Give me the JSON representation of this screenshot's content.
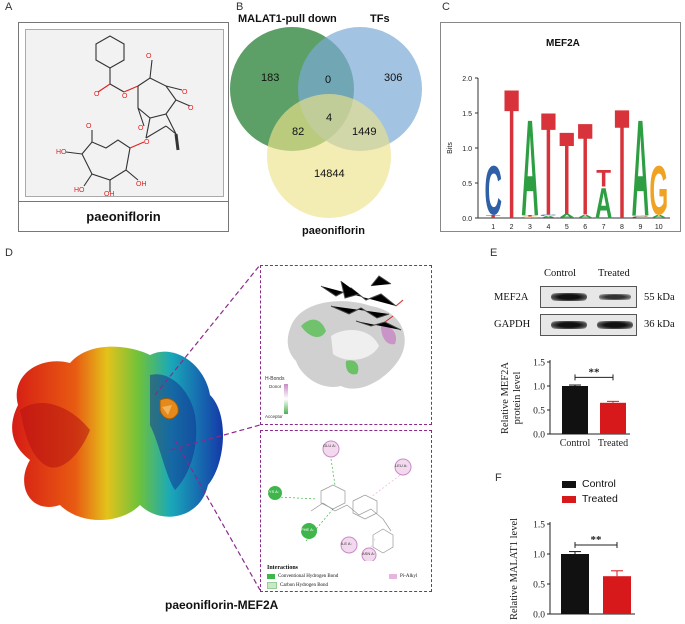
{
  "panels": {
    "A": {
      "label": "A",
      "compound_name": "paeoniflorin"
    },
    "B": {
      "label": "B",
      "sets": [
        {
          "name": "MALAT1-pull down",
          "color": "#3f8f4c"
        },
        {
          "name": "TFs",
          "color": "#7aa9d6"
        },
        {
          "name": "paeoniflorin",
          "color": "#ede28a"
        }
      ],
      "counts": {
        "only_malat1": "183",
        "only_tfs": "306",
        "only_paeoniflorin": "14844",
        "malat1_tfs": "0",
        "malat1_paeoniflorin": "82",
        "tfs_paeoniflorin": "1449",
        "all_three": "4"
      }
    },
    "C": {
      "label": "C",
      "chart_data": {
        "type": "bar",
        "title": "MEF2A",
        "ylabel": "Bits",
        "ylim": [
          0,
          2.0
        ],
        "yticks": [
          "0.0",
          "0.5",
          "1.0",
          "1.5",
          "2.0"
        ],
        "categories": [
          "1",
          "2",
          "3",
          "4",
          "5",
          "6",
          "7",
          "8",
          "9",
          "10"
        ],
        "letters_colors": {
          "C": "#2f5fa7",
          "T": "#d8323a",
          "A": "#2e9e43",
          "G": "#f0a323"
        },
        "positions": [
          {
            "pos": "1",
            "stack": [
              {
                "letter": "T",
                "bits": 0.05
              },
              {
                "letter": "C",
                "bits": 0.72
              }
            ]
          },
          {
            "pos": "2",
            "stack": [
              {
                "letter": "T",
                "bits": 1.92
              }
            ]
          },
          {
            "pos": "3",
            "stack": [
              {
                "letter": "G",
                "bits": 0.02
              },
              {
                "letter": "T",
                "bits": 0.02
              },
              {
                "letter": "A",
                "bits": 1.42
              }
            ]
          },
          {
            "pos": "4",
            "stack": [
              {
                "letter": "A",
                "bits": 0.03
              },
              {
                "letter": "C",
                "bits": 0.02
              },
              {
                "letter": "T",
                "bits": 1.52
              }
            ]
          },
          {
            "pos": "5",
            "stack": [
              {
                "letter": "A",
                "bits": 0.06
              },
              {
                "letter": "T",
                "bits": 1.22
              }
            ]
          },
          {
            "pos": "6",
            "stack": [
              {
                "letter": "A",
                "bits": 0.05
              },
              {
                "letter": "T",
                "bits": 1.36
              }
            ]
          },
          {
            "pos": "7",
            "stack": [
              {
                "letter": "A",
                "bits": 0.45
              },
              {
                "letter": "T",
                "bits": 0.25
              }
            ]
          },
          {
            "pos": "8",
            "stack": [
              {
                "letter": "T",
                "bits": 1.62
              }
            ]
          },
          {
            "pos": "9",
            "stack": [
              {
                "letter": "C",
                "bits": 0.02
              },
              {
                "letter": "G",
                "bits": 0.02
              },
              {
                "letter": "A",
                "bits": 1.42
              }
            ]
          },
          {
            "pos": "10",
            "stack": [
              {
                "letter": "A",
                "bits": 0.05
              },
              {
                "letter": "G",
                "bits": 0.72
              }
            ]
          }
        ]
      }
    },
    "D": {
      "label": "D",
      "caption": "paeoniflorin-MEF2A",
      "surface_legend": {
        "title": "H-Bonds",
        "top": "Donor",
        "bottom": "Acceptor"
      },
      "residue_labels": [
        "GLU A:",
        "LYS A:",
        "LEU A:",
        "PHE A:",
        "ILE A:",
        "ASN A:"
      ],
      "interactions": {
        "title": "Interactions",
        "items": [
          {
            "label": "Conventional Hydrogen Bond",
            "color": "#3fb64b"
          },
          {
            "label": "Carbon Hydrogen Bond",
            "color": "#c9e9c6"
          },
          {
            "label": "Pi-Alkyl",
            "color": "#e7b5dd"
          }
        ]
      }
    },
    "E": {
      "label": "E",
      "blot": {
        "columns": [
          "Control",
          "Treated"
        ],
        "rows": [
          {
            "protein": "MEF2A",
            "kda": "55 kDa"
          },
          {
            "protein": "GAPDH",
            "kda": "36 kDa"
          }
        ]
      },
      "chart_data": {
        "type": "bar",
        "categories": [
          "Control",
          "Treated"
        ],
        "values": [
          1.0,
          0.65
        ],
        "errors": [
          0.02,
          0.03
        ],
        "colors": [
          "#111111",
          "#d7191c"
        ],
        "ylabel": "Relative MEF2A protein level",
        "ylim": [
          0,
          1.5
        ],
        "yticks": [
          "0.0",
          "0.5",
          "1.0",
          "1.5"
        ],
        "significance": "**"
      }
    },
    "F": {
      "label": "F",
      "chart_data": {
        "type": "bar",
        "categories": [
          "Control",
          "Treated"
        ],
        "series": [
          {
            "name": "Control",
            "color": "#111111"
          },
          {
            "name": "Treated",
            "color": "#d7191c"
          }
        ],
        "values": [
          1.0,
          0.63
        ],
        "errors": [
          0.04,
          0.09
        ],
        "colors": [
          "#111111",
          "#d7191c"
        ],
        "ylabel": "Relative MALAT1 level",
        "ylim": [
          0,
          1.5
        ],
        "yticks": [
          "0.0",
          "0.5",
          "1.0",
          "1.5"
        ],
        "significance": "**",
        "legend": "top"
      }
    }
  }
}
